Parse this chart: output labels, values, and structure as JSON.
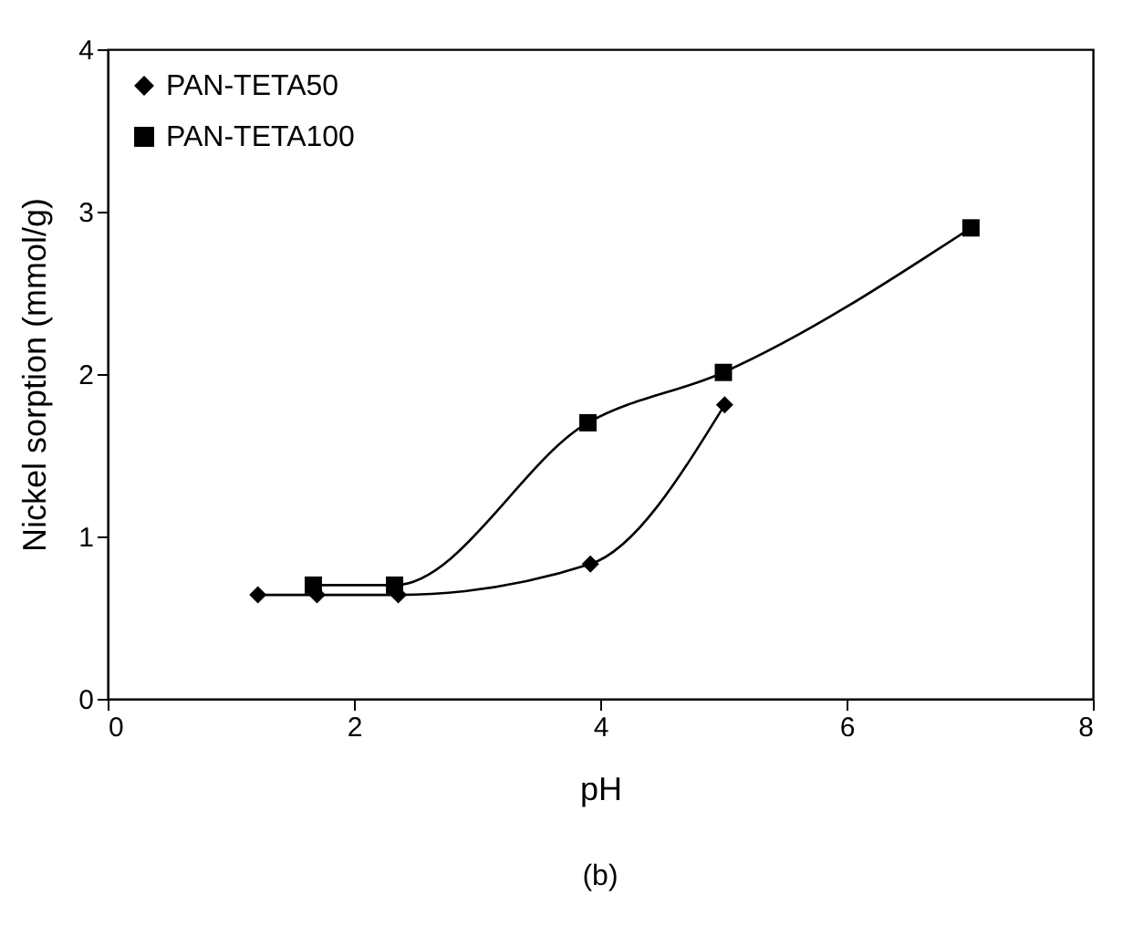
{
  "chart_data": {
    "type": "line",
    "xlabel": "pH",
    "ylabel": "Nickel sorption (mmol/g)",
    "annotations": [
      "(b)"
    ],
    "xlim": [
      0,
      8
    ],
    "xticks": [
      0,
      2,
      4,
      6,
      8
    ],
    "ylim": [
      0,
      4
    ],
    "yticks": [
      0,
      1,
      2,
      3,
      4
    ],
    "grid": false,
    "legend": "top left",
    "line_style": "solid",
    "series": [
      {
        "name": "PAN-TETA50",
        "color": "#000000",
        "marker": "diamond",
        "x": [
          1.22,
          1.7,
          2.36,
          3.92,
          5.01
        ],
        "values": [
          0.64,
          0.64,
          0.64,
          0.83,
          1.81
        ]
      },
      {
        "name": "PAN-TETA100",
        "color": "#000000",
        "marker": "square",
        "x": [
          1.67,
          2.33,
          3.9,
          5.0,
          7.01
        ],
        "values": [
          0.7,
          0.7,
          1.7,
          2.01,
          2.9
        ]
      }
    ]
  }
}
